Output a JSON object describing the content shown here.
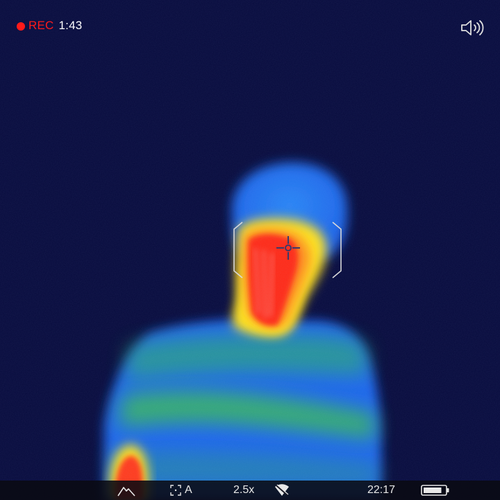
{
  "recording": {
    "label": "REC",
    "elapsed": "1:43",
    "indicator_color": "#ff1a1a"
  },
  "audio": {
    "icon": "speaker-volume-icon"
  },
  "status_bar": {
    "mode_icon": "mountain-scene-icon",
    "focus_icon": "auto-focus-icon",
    "focus_label": "A",
    "zoom": "2.5x",
    "wifi_icon": "wifi-off-icon",
    "time": "22:17",
    "battery_icon": "battery-icon",
    "battery_level": 0.85
  },
  "reticle": {
    "crosshair_icon": "crosshair-icon"
  },
  "palette": {
    "background": "#060a3c",
    "cool": "#1e6cf0",
    "mid": "#2fb84a",
    "warm": "#f2e21a",
    "hot": "#ff2a1a"
  }
}
